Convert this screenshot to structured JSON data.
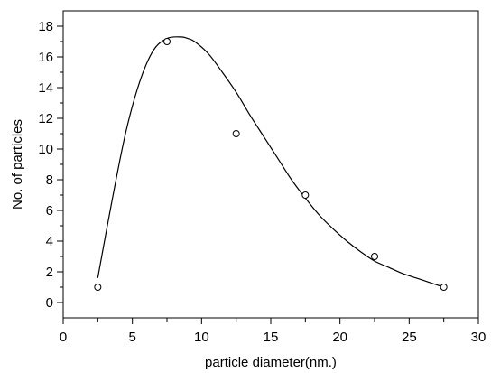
{
  "chart_data": {
    "type": "scatter",
    "xlabel": "particle diameter(nm.)",
    "ylabel": "No. of particles",
    "xlim": [
      0,
      30
    ],
    "ylim": [
      -1,
      19
    ],
    "xticks": [
      0,
      5,
      10,
      15,
      20,
      25,
      30
    ],
    "yticks": [
      0,
      2,
      4,
      6,
      8,
      10,
      12,
      14,
      16,
      18
    ],
    "grid": false,
    "legend": "none",
    "series": [
      {
        "kind": "points",
        "marker": "open-circle",
        "x": [
          2.5,
          7.5,
          12.5,
          17.5,
          22.5,
          27.5
        ],
        "y": [
          1,
          17,
          11,
          7,
          3,
          1
        ]
      },
      {
        "kind": "fitted-curve",
        "x": [
          2.5,
          3.5,
          4.5,
          5.5,
          6.5,
          7.5,
          8.5,
          9,
          9.5,
          10.5,
          11.5,
          12.5,
          13.5,
          14.5,
          15.5,
          16.5,
          17.5,
          18.5,
          19.5,
          20.5,
          21.5,
          22.5,
          23.5,
          24.5,
          25.5,
          26.5,
          27.5
        ],
        "y": [
          1.6,
          6.5,
          11.0,
          14.3,
          16.4,
          17.2,
          17.3,
          17.2,
          17.0,
          16.2,
          15.0,
          13.7,
          12.2,
          10.8,
          9.4,
          8.0,
          6.8,
          5.7,
          4.8,
          4.0,
          3.3,
          2.7,
          2.3,
          1.9,
          1.6,
          1.3,
          1.0
        ]
      }
    ]
  }
}
